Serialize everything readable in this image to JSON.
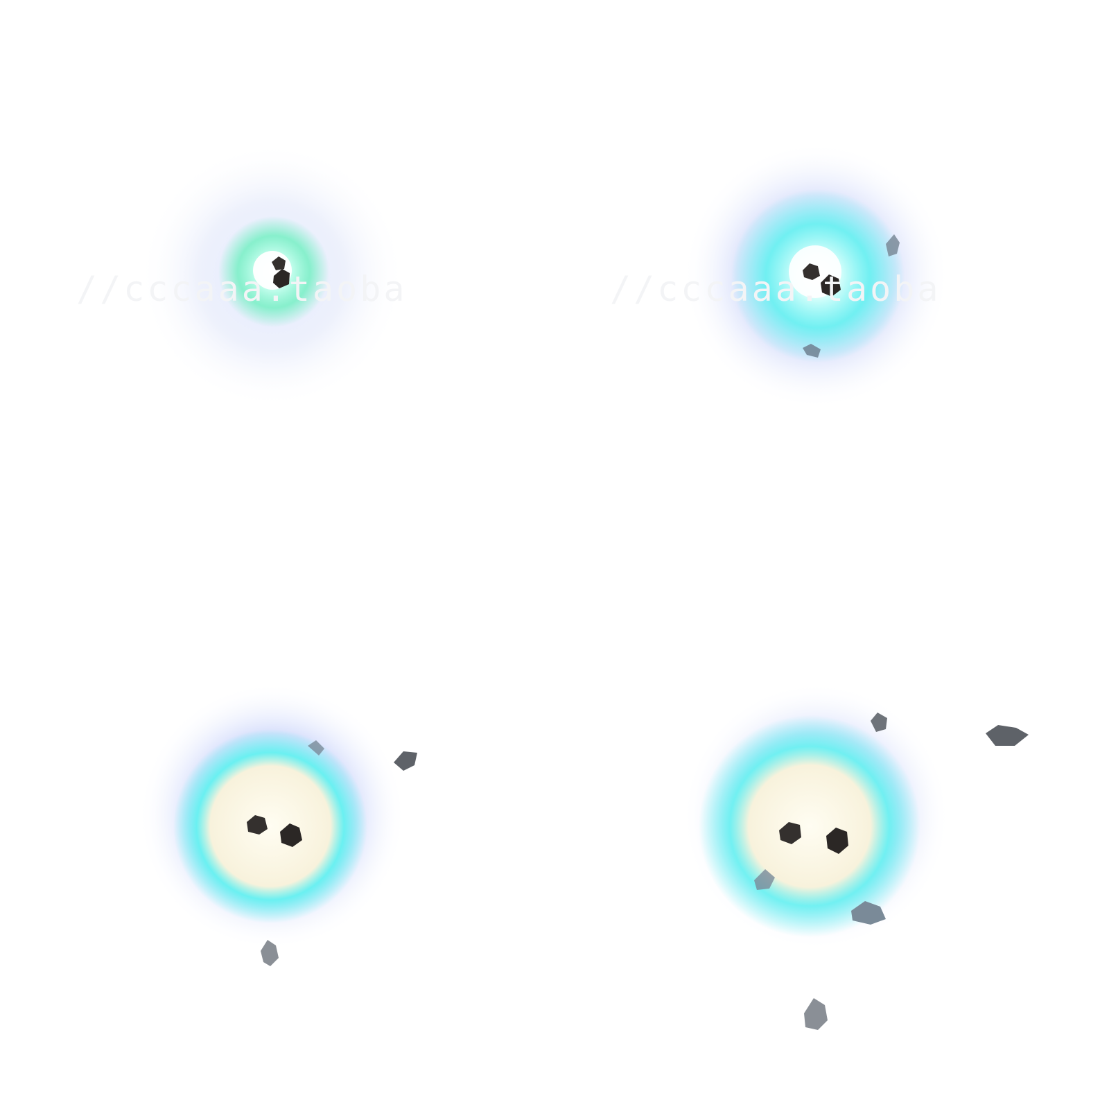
{
  "sprite_sheet": {
    "effect": "ice-crystal-burst",
    "frame_count": 4,
    "colors": {
      "background": "#ffffff",
      "outer_halo": "#c9d4ff",
      "cyan_glow": "#5ef2f0",
      "green_glow": "#6ff0c0",
      "core_white": "#fffdf2",
      "core_warm": "#f8f2dc",
      "rock_dark": "#2e2a28",
      "rock_light": "#8a8f96",
      "watermark": "#f3f4f6"
    },
    "frames": [
      {
        "index": 1,
        "stage": "spark",
        "rock_icon": "rock-icon"
      },
      {
        "index": 2,
        "stage": "flare",
        "rock_icon": "rock-icon"
      },
      {
        "index": 3,
        "stage": "burst",
        "rock_icon": "rock-icon"
      },
      {
        "index": 4,
        "stage": "scatter",
        "rock_icon": "rock-icon"
      }
    ]
  },
  "watermarks": {
    "left": "//cccaaa.taoba",
    "right": "//cccaaa.taoba"
  }
}
